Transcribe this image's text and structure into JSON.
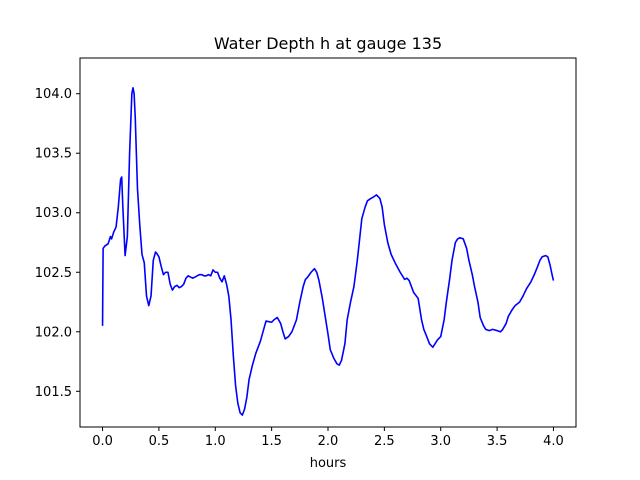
{
  "chart_data": {
    "type": "line",
    "title": "Water Depth h at gauge 135",
    "xlabel": "hours",
    "ylabel": "",
    "xlim": [
      -0.2,
      4.2
    ],
    "ylim": [
      101.2,
      104.3
    ],
    "xticks": [
      0.0,
      0.5,
      1.0,
      1.5,
      2.0,
      2.5,
      3.0,
      3.5,
      4.0
    ],
    "xtick_labels": [
      "0.0",
      "0.5",
      "1.0",
      "1.5",
      "2.0",
      "2.5",
      "3.0",
      "3.5",
      "4.0"
    ],
    "yticks": [
      101.5,
      102.0,
      102.5,
      103.0,
      103.5,
      104.0
    ],
    "ytick_labels": [
      "101.5",
      "102.0",
      "102.5",
      "103.0",
      "103.5",
      "104.0"
    ],
    "grid": false,
    "series": [
      {
        "color": "#0000ff",
        "x": [
          0.0,
          0.005,
          0.02,
          0.05,
          0.07,
          0.08,
          0.1,
          0.12,
          0.14,
          0.16,
          0.17,
          0.18,
          0.2,
          0.22,
          0.24,
          0.26,
          0.27,
          0.28,
          0.29,
          0.3,
          0.31,
          0.33,
          0.35,
          0.37,
          0.39,
          0.41,
          0.43,
          0.45,
          0.47,
          0.48,
          0.5,
          0.52,
          0.54,
          0.56,
          0.58,
          0.6,
          0.62,
          0.64,
          0.66,
          0.68,
          0.7,
          0.72,
          0.74,
          0.76,
          0.78,
          0.8,
          0.82,
          0.84,
          0.86,
          0.88,
          0.9,
          0.92,
          0.94,
          0.96,
          0.98,
          1.0,
          1.02,
          1.04,
          1.06,
          1.08,
          1.1,
          1.12,
          1.14,
          1.16,
          1.18,
          1.2,
          1.22,
          1.24,
          1.26,
          1.28,
          1.3,
          1.33,
          1.36,
          1.4,
          1.45,
          1.5,
          1.52,
          1.55,
          1.58,
          1.6,
          1.62,
          1.65,
          1.68,
          1.72,
          1.75,
          1.78,
          1.8,
          1.82,
          1.85,
          1.88,
          1.9,
          1.92,
          1.95,
          1.98,
          2.0,
          2.02,
          2.05,
          2.08,
          2.1,
          2.12,
          2.15,
          2.17,
          2.2,
          2.23,
          2.26,
          2.3,
          2.33,
          2.35,
          2.38,
          2.4,
          2.43,
          2.46,
          2.48,
          2.5,
          2.53,
          2.56,
          2.6,
          2.64,
          2.68,
          2.7,
          2.72,
          2.74,
          2.76,
          2.8,
          2.83,
          2.85,
          2.88,
          2.9,
          2.93,
          2.95,
          2.97,
          3.0,
          3.03,
          3.05,
          3.08,
          3.1,
          3.13,
          3.15,
          3.17,
          3.2,
          3.23,
          3.25,
          3.28,
          3.3,
          3.33,
          3.35,
          3.38,
          3.4,
          3.43,
          3.46,
          3.5,
          3.53,
          3.55,
          3.58,
          3.6,
          3.63,
          3.66,
          3.7,
          3.73,
          3.76,
          3.8,
          3.83,
          3.86,
          3.88,
          3.9,
          3.93,
          3.95,
          3.97,
          3.99,
          4.0
        ],
        "y": [
          102.05,
          102.7,
          102.72,
          102.74,
          102.8,
          102.78,
          102.84,
          102.88,
          103.05,
          103.28,
          103.3,
          103.05,
          102.64,
          102.8,
          103.5,
          104.0,
          104.05,
          104.0,
          103.8,
          103.5,
          103.2,
          102.9,
          102.65,
          102.58,
          102.3,
          102.22,
          102.3,
          102.6,
          102.67,
          102.66,
          102.63,
          102.55,
          102.48,
          102.5,
          102.5,
          102.4,
          102.35,
          102.38,
          102.39,
          102.37,
          102.38,
          102.4,
          102.45,
          102.47,
          102.46,
          102.45,
          102.46,
          102.47,
          102.48,
          102.48,
          102.47,
          102.47,
          102.48,
          102.47,
          102.52,
          102.5,
          102.5,
          102.45,
          102.42,
          102.47,
          102.4,
          102.3,
          102.1,
          101.8,
          101.55,
          101.4,
          101.32,
          101.3,
          101.35,
          101.45,
          101.6,
          101.72,
          101.82,
          101.92,
          102.09,
          102.08,
          102.1,
          102.12,
          102.07,
          102.0,
          101.94,
          101.96,
          102.0,
          102.1,
          102.25,
          102.38,
          102.44,
          102.46,
          102.5,
          102.53,
          102.5,
          102.43,
          102.28,
          102.1,
          101.98,
          101.85,
          101.78,
          101.73,
          101.72,
          101.76,
          101.9,
          102.1,
          102.25,
          102.38,
          102.6,
          102.95,
          103.05,
          103.1,
          103.12,
          103.13,
          103.15,
          103.12,
          103.05,
          102.9,
          102.75,
          102.65,
          102.57,
          102.5,
          102.44,
          102.45,
          102.43,
          102.38,
          102.33,
          102.28,
          102.1,
          102.02,
          101.95,
          101.9,
          101.87,
          101.9,
          101.93,
          101.96,
          102.1,
          102.25,
          102.45,
          102.6,
          102.75,
          102.78,
          102.79,
          102.78,
          102.7,
          102.6,
          102.48,
          102.38,
          102.25,
          102.12,
          102.05,
          102.02,
          102.01,
          102.02,
          102.01,
          102.0,
          102.02,
          102.07,
          102.13,
          102.18,
          102.22,
          102.25,
          102.3,
          102.36,
          102.42,
          102.48,
          102.55,
          102.6,
          102.63,
          102.64,
          102.63,
          102.56,
          102.47,
          102.43
        ]
      }
    ]
  }
}
